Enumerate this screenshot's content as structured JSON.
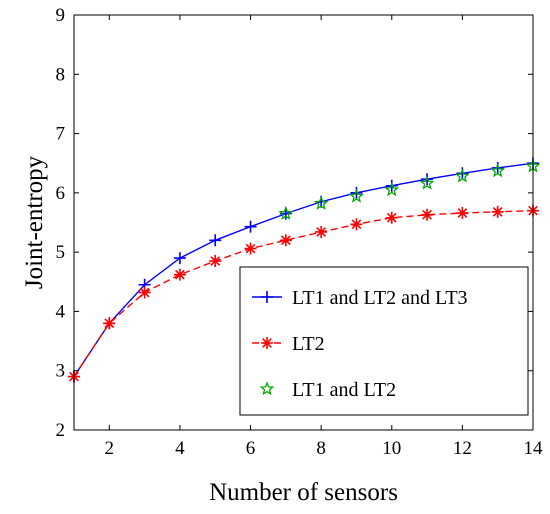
{
  "chart_data": {
    "type": "line",
    "title": "",
    "xlabel": "Number of sensors",
    "ylabel": "Joint-entropy",
    "xlim": [
      1,
      14
    ],
    "ylim": [
      2,
      9
    ],
    "xticks": [
      2,
      4,
      6,
      8,
      10,
      12,
      14
    ],
    "yticks": [
      2,
      3,
      4,
      5,
      6,
      7,
      8,
      9
    ],
    "grid": false,
    "legend_position": "bottom-right",
    "series": [
      {
        "name": "LT1 and LT2 and LT3",
        "color": "#0000ff",
        "line_style": "solid",
        "marker": "plus",
        "x": [
          1,
          2,
          3,
          4,
          5,
          6,
          7,
          8,
          9,
          10,
          11,
          12,
          13,
          14
        ],
        "y": [
          2.9,
          3.8,
          4.45,
          4.9,
          5.2,
          5.43,
          5.65,
          5.85,
          6.0,
          6.12,
          6.23,
          6.33,
          6.42,
          6.5
        ]
      },
      {
        "name": "LT2",
        "color": "#ff0000",
        "line_style": "dashed",
        "marker": "asterisk",
        "x": [
          1,
          2,
          3,
          4,
          5,
          6,
          7,
          8,
          9,
          10,
          11,
          12,
          13,
          14
        ],
        "y": [
          2.9,
          3.8,
          4.32,
          4.62,
          4.85,
          5.06,
          5.2,
          5.34,
          5.47,
          5.58,
          5.63,
          5.66,
          5.68,
          5.7
        ]
      },
      {
        "name": "LT1 and LT2",
        "color": "#00aa00",
        "line_style": "none",
        "marker": "pentagram",
        "x": [
          7,
          8,
          9,
          10,
          11,
          12,
          13,
          14
        ],
        "y": [
          5.65,
          5.82,
          5.94,
          6.05,
          6.16,
          6.28,
          6.37,
          6.45
        ]
      }
    ]
  }
}
